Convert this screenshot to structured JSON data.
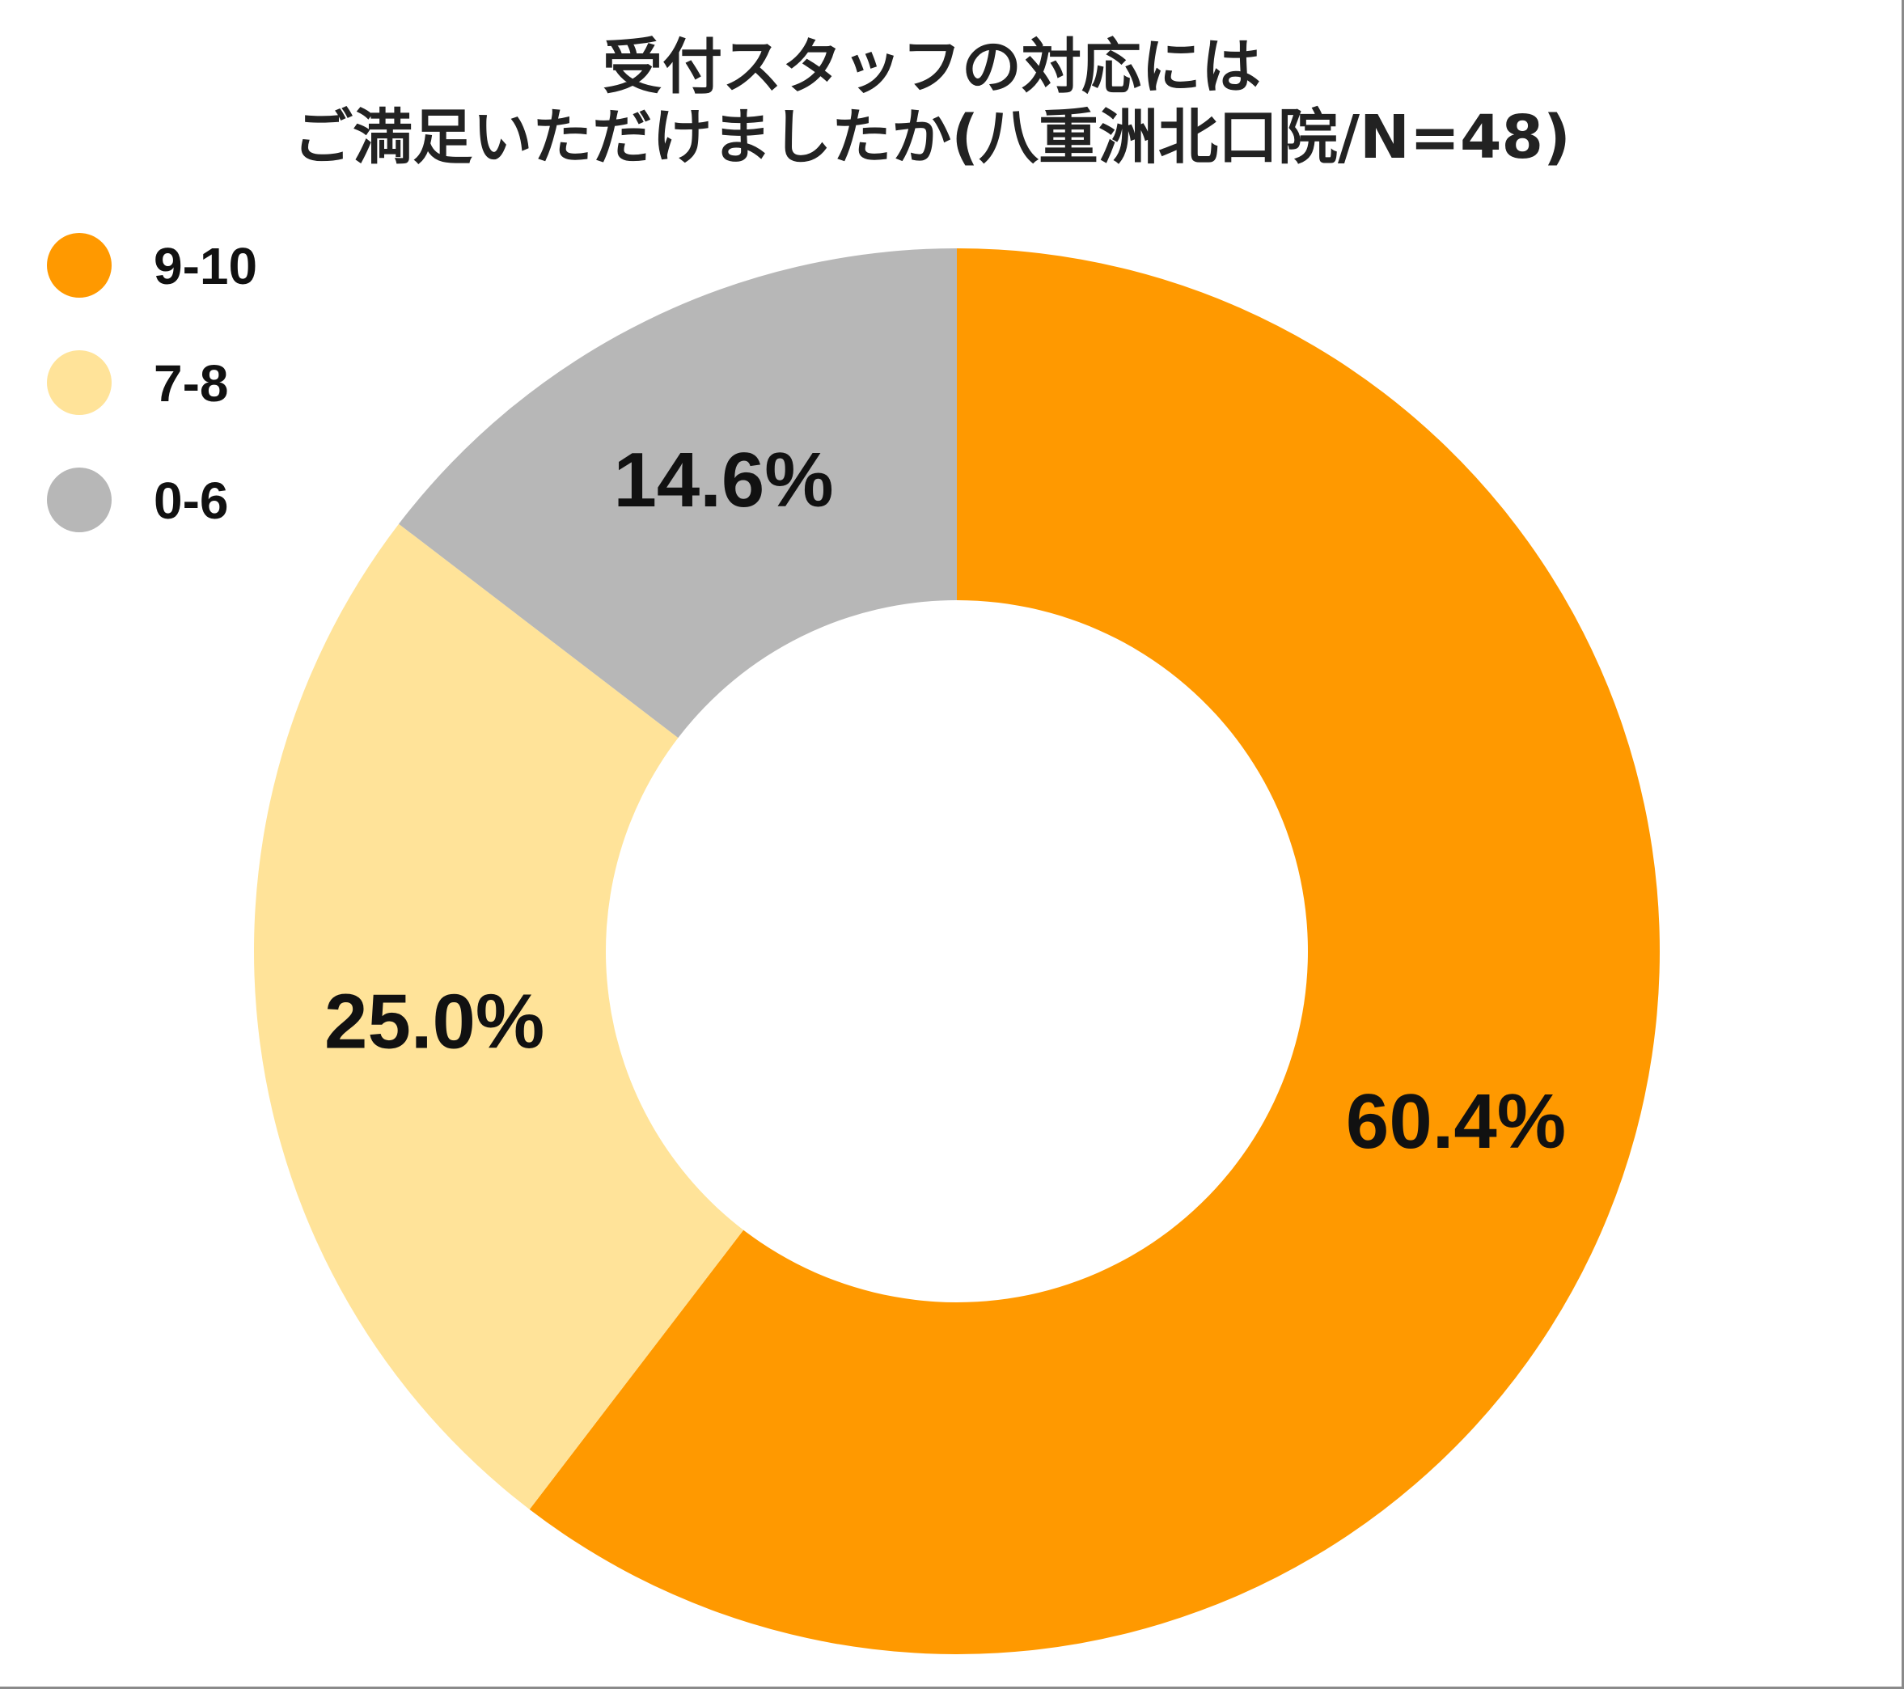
{
  "chart_data": {
    "type": "pie",
    "style": "donut",
    "title_lines": [
      "受付スタッフの対応には",
      "ご満足いただけましたか(八重洲北口院/N=48)"
    ],
    "categories": [
      "9-10",
      "7-8",
      "0-6"
    ],
    "values": [
      60.4,
      25.0,
      14.6
    ],
    "value_labels": [
      "60.4%",
      "25.0%",
      "14.6%"
    ],
    "colors": [
      "#FF9900",
      "#FFE399",
      "#B7B7B7"
    ],
    "legend_position": "top-left",
    "start_angle": "top (12 o'clock)",
    "direction": "clockwise"
  }
}
